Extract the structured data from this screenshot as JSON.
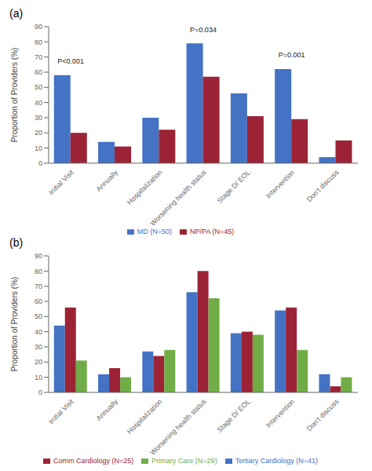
{
  "chart_data": [
    {
      "type": "bar",
      "title": "(a)",
      "categories": [
        "Initial Visit",
        "Annually",
        "Hospitalization",
        "Worsening health status",
        "Stage D/ EOL",
        "Intervention",
        "Don't discuss"
      ],
      "series": [
        {
          "name": "MD (N=50)",
          "color": "#4472C4",
          "values": [
            58,
            14,
            30,
            79,
            46,
            62,
            4
          ]
        },
        {
          "name": "NP/PA (N=45)",
          "color": "#9B2335",
          "values": [
            20,
            11,
            22,
            57,
            31,
            29,
            15
          ]
        }
      ],
      "ylabel": "Proportion of Providers (%)",
      "ylim": [
        0,
        90
      ],
      "yticks": [
        0,
        10,
        20,
        30,
        40,
        50,
        60,
        70,
        80,
        90
      ],
      "annotations": [
        {
          "text": "P<0.001",
          "x": "Initial Visit",
          "y": 63
        },
        {
          "text": "P=0.034",
          "x": "Worsening health status",
          "y": 84
        },
        {
          "text": "P=0.001",
          "x": "Intervention",
          "y": 67
        }
      ],
      "legend": "bottom",
      "grid": false
    },
    {
      "type": "bar",
      "title": "(b)",
      "categories": [
        "Initial Visit",
        "Annually",
        "Hospitalization",
        "Worsening health status",
        "Stage D/ EOL",
        "Intervention",
        "Don't discuss"
      ],
      "series": [
        {
          "name": "Tertiary Cardiology (N=41)",
          "color": "#4472C4",
          "values": [
            44,
            12,
            27,
            66,
            39,
            54,
            12
          ]
        },
        {
          "name": "Comm Cardiology (N=25)",
          "color": "#9B2335",
          "values": [
            56,
            16,
            24,
            80,
            40,
            56,
            4
          ]
        },
        {
          "name": "Primary Care (N=29)",
          "color": "#70AD47",
          "values": [
            21,
            10,
            28,
            62,
            38,
            28,
            10
          ]
        }
      ],
      "ylabel": "Proportion of Providers (%)",
      "ylim": [
        0,
        90
      ],
      "yticks": [
        0,
        10,
        20,
        30,
        40,
        50,
        60,
        70,
        80,
        90
      ],
      "legend": "bottom",
      "grid": false
    }
  ]
}
